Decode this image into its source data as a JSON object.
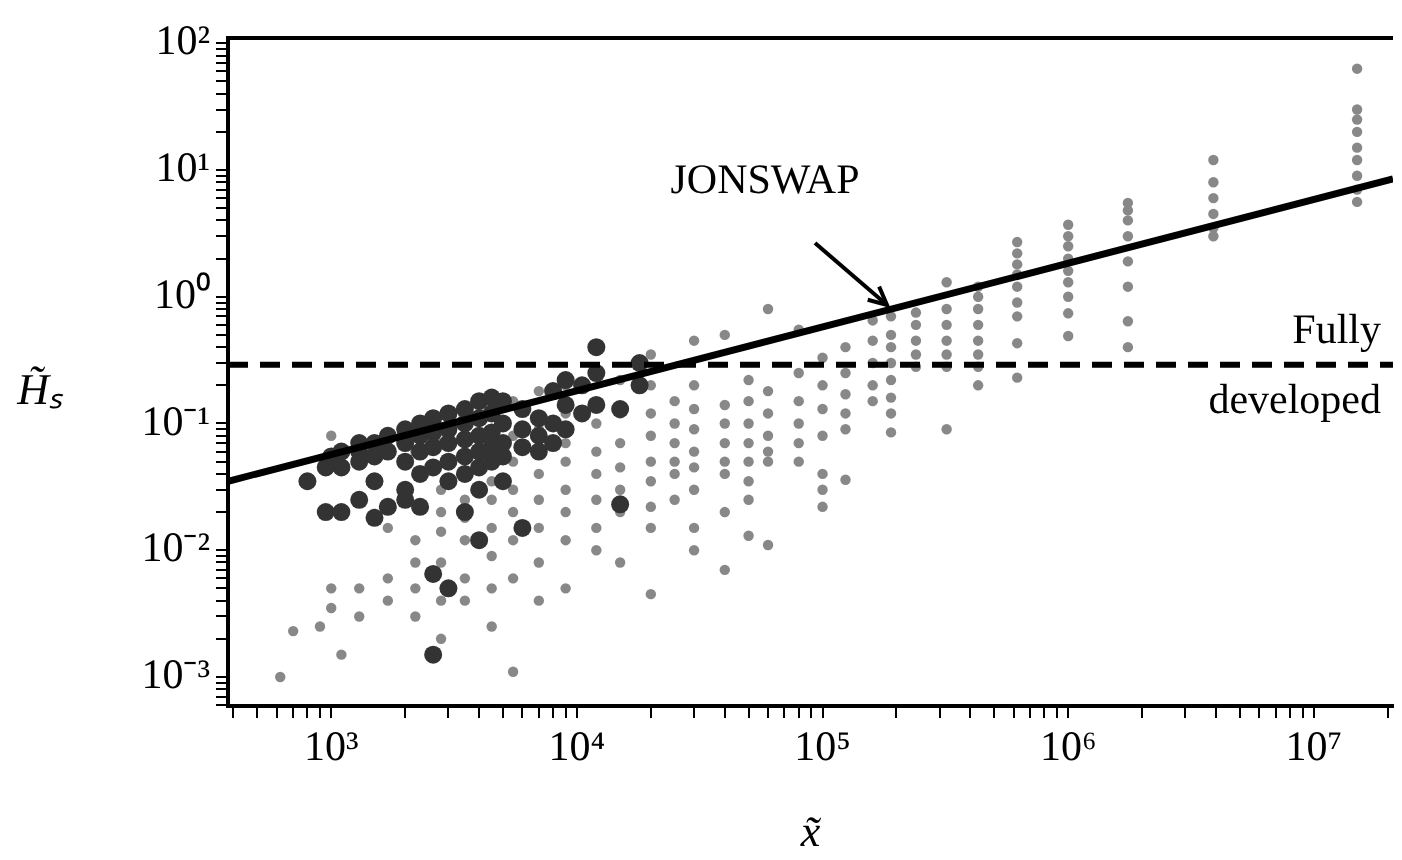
{
  "chart_data": {
    "type": "scatter",
    "xlabel": "x̃",
    "ylabel": "H̃ₛ",
    "log": "xy",
    "grid": false,
    "legend": false,
    "marker": "circle",
    "xlim": [
      380,
      21000000
    ],
    "ylim": [
      0.00059,
      110
    ],
    "xticks": [
      {
        "value": 400,
        "label": null
      },
      {
        "value": 500,
        "label": null
      },
      {
        "value": 600,
        "label": null
      },
      {
        "value": 700,
        "label": null
      },
      {
        "value": 800,
        "label": null
      },
      {
        "value": 900,
        "label": null
      },
      {
        "value": 1000,
        "label": "10³"
      },
      {
        "value": 2000,
        "label": null
      },
      {
        "value": 3000,
        "label": null
      },
      {
        "value": 4000,
        "label": null
      },
      {
        "value": 5000,
        "label": null
      },
      {
        "value": 6000,
        "label": null
      },
      {
        "value": 7000,
        "label": null
      },
      {
        "value": 8000,
        "label": null
      },
      {
        "value": 9000,
        "label": null
      },
      {
        "value": 10000,
        "label": "10⁴"
      },
      {
        "value": 20000,
        "label": null
      },
      {
        "value": 30000,
        "label": null
      },
      {
        "value": 40000,
        "label": null
      },
      {
        "value": 50000,
        "label": null
      },
      {
        "value": 60000,
        "label": null
      },
      {
        "value": 70000,
        "label": null
      },
      {
        "value": 80000,
        "label": null
      },
      {
        "value": 90000,
        "label": null
      },
      {
        "value": 100000,
        "label": "10⁵"
      },
      {
        "value": 200000,
        "label": null
      },
      {
        "value": 300000,
        "label": null
      },
      {
        "value": 400000,
        "label": null
      },
      {
        "value": 500000,
        "label": null
      },
      {
        "value": 600000,
        "label": null
      },
      {
        "value": 700000,
        "label": null
      },
      {
        "value": 800000,
        "label": null
      },
      {
        "value": 900000,
        "label": null
      },
      {
        "value": 1000000,
        "label": "10⁶"
      },
      {
        "value": 2000000,
        "label": null
      },
      {
        "value": 3000000,
        "label": null
      },
      {
        "value": 4000000,
        "label": null
      },
      {
        "value": 5000000,
        "label": null
      },
      {
        "value": 6000000,
        "label": null
      },
      {
        "value": 7000000,
        "label": null
      },
      {
        "value": 8000000,
        "label": null
      },
      {
        "value": 9000000,
        "label": null
      },
      {
        "value": 10000000,
        "label": "10⁷"
      },
      {
        "value": 20000000,
        "label": null
      }
    ],
    "yticks": [
      {
        "value": 0.0006,
        "label": null
      },
      {
        "value": 0.0007,
        "label": null
      },
      {
        "value": 0.0008,
        "label": null
      },
      {
        "value": 0.0009,
        "label": null
      },
      {
        "value": 0.001,
        "label": "10⁻³"
      },
      {
        "value": 0.002,
        "label": null
      },
      {
        "value": 0.003,
        "label": null
      },
      {
        "value": 0.004,
        "label": null
      },
      {
        "value": 0.005,
        "label": null
      },
      {
        "value": 0.006,
        "label": null
      },
      {
        "value": 0.007,
        "label": null
      },
      {
        "value": 0.008,
        "label": null
      },
      {
        "value": 0.009,
        "label": null
      },
      {
        "value": 0.01,
        "label": "10⁻²"
      },
      {
        "value": 0.02,
        "label": null
      },
      {
        "value": 0.03,
        "label": null
      },
      {
        "value": 0.04,
        "label": null
      },
      {
        "value": 0.05,
        "label": null
      },
      {
        "value": 0.06,
        "label": null
      },
      {
        "value": 0.07,
        "label": null
      },
      {
        "value": 0.08,
        "label": null
      },
      {
        "value": 0.09,
        "label": null
      },
      {
        "value": 0.1,
        "label": "10⁻¹"
      },
      {
        "value": 0.2,
        "label": null
      },
      {
        "value": 0.3,
        "label": null
      },
      {
        "value": 0.4,
        "label": null
      },
      {
        "value": 0.5,
        "label": null
      },
      {
        "value": 0.6,
        "label": null
      },
      {
        "value": 0.7,
        "label": null
      },
      {
        "value": 0.8,
        "label": null
      },
      {
        "value": 0.9,
        "label": null
      },
      {
        "value": 1,
        "label": "10⁰"
      },
      {
        "value": 2,
        "label": null
      },
      {
        "value": 3,
        "label": null
      },
      {
        "value": 4,
        "label": null
      },
      {
        "value": 5,
        "label": null
      },
      {
        "value": 6,
        "label": null
      },
      {
        "value": 7,
        "label": null
      },
      {
        "value": 8,
        "label": null
      },
      {
        "value": 9,
        "label": null
      },
      {
        "value": 10,
        "label": "10¹"
      },
      {
        "value": 20,
        "label": null
      },
      {
        "value": 30,
        "label": null
      },
      {
        "value": 40,
        "label": null
      },
      {
        "value": 50,
        "label": null
      },
      {
        "value": 60,
        "label": null
      },
      {
        "value": 70,
        "label": null
      },
      {
        "value": 80,
        "label": null
      },
      {
        "value": 90,
        "label": null
      },
      {
        "value": 100,
        "label": "10²"
      }
    ],
    "series": [
      {
        "color": "#888888",
        "x": [
          15000000,
          15000000,
          15000000,
          15000000,
          15000000,
          15000000,
          15000000,
          15000000,
          15000000,
          3900000,
          3900000,
          3900000,
          3900000,
          3900000,
          3900000,
          1750000,
          1750000,
          1750000,
          1750000,
          1750000,
          1750000,
          1750000,
          1750000,
          1000000,
          1000000,
          1000000,
          1000000,
          1000000,
          1000000,
          1000000,
          1000000,
          1000000,
          620000,
          620000,
          620000,
          620000,
          620000,
          620000,
          620000,
          620000,
          620000,
          430000,
          430000,
          430000,
          430000,
          430000,
          430000,
          430000,
          430000,
          320000,
          320000,
          320000,
          320000,
          320000,
          320000,
          320000,
          240000,
          240000,
          240000,
          240000,
          240000,
          190000,
          190000,
          190000,
          190000,
          190000,
          190000,
          190000,
          190000,
          160000,
          160000,
          160000,
          160000,
          160000,
          124000,
          124000,
          124000,
          124000,
          124000,
          124000,
          100000,
          100000,
          100000,
          100000,
          100000,
          100000,
          100000,
          80000,
          80000,
          80000,
          80000,
          80000,
          80000,
          60000,
          60000,
          60000,
          60000,
          60000,
          60000,
          60000,
          50000,
          50000,
          50000,
          50000,
          50000,
          50000,
          50000,
          50000,
          40000,
          40000,
          40000,
          40000,
          40000,
          40000,
          40000,
          40000,
          30000,
          30000,
          30000,
          30000,
          30000,
          30000,
          30000,
          30000,
          30000,
          25000,
          25000,
          25000,
          25000,
          25000,
          25000,
          20000,
          20000,
          20000,
          20000,
          20000,
          20000,
          20000,
          20000,
          20000,
          15000,
          15000,
          15000,
          15000,
          15000,
          15000,
          15000,
          12000,
          12000,
          12000,
          12000,
          12000,
          12000,
          9000,
          9000,
          9000,
          9000,
          9000,
          9000,
          9000,
          9000,
          7000,
          7000,
          7000,
          7000,
          7000,
          7000,
          7000,
          5500,
          5500,
          5500,
          5500,
          5500,
          5500,
          5500,
          5500,
          4500,
          4500,
          4500,
          4500,
          4500,
          4500,
          3500,
          3500,
          3500,
          3500,
          3500,
          2800,
          2800,
          2800,
          2800,
          2800,
          2800,
          2800,
          2200,
          2200,
          2200,
          2200,
          2200,
          1700,
          1700,
          1700,
          1300,
          1300,
          1000,
          1000,
          1000,
          900,
          1100,
          700,
          620
        ],
        "values": [
          63,
          30,
          25,
          20,
          15,
          12,
          9,
          7,
          5.6,
          12,
          8,
          6,
          4.5,
          3.5,
          3,
          5.5,
          4.8,
          4,
          3,
          1.9,
          1.2,
          0.64,
          0.4,
          3.7,
          3,
          2.5,
          2,
          1.6,
          1.3,
          1,
          0.74,
          0.49,
          2.7,
          2.2,
          1.8,
          1.5,
          1.2,
          0.9,
          0.7,
          0.43,
          0.23,
          1.2,
          1,
          0.8,
          0.6,
          0.45,
          0.35,
          0.28,
          0.2,
          1.3,
          0.8,
          0.6,
          0.45,
          0.35,
          0.28,
          0.09,
          0.75,
          0.6,
          0.45,
          0.35,
          0.28,
          0.7,
          0.5,
          0.4,
          0.3,
          0.22,
          0.16,
          0.12,
          0.085,
          0.65,
          0.45,
          0.3,
          0.2,
          0.15,
          0.4,
          0.25,
          0.17,
          0.12,
          0.09,
          0.036,
          0.33,
          0.2,
          0.13,
          0.08,
          0.04,
          0.03,
          0.022,
          0.55,
          0.25,
          0.15,
          0.1,
          0.07,
          0.05,
          0.8,
          0.18,
          0.12,
          0.08,
          0.06,
          0.05,
          0.011,
          0.22,
          0.15,
          0.1,
          0.07,
          0.05,
          0.035,
          0.025,
          0.013,
          0.5,
          0.14,
          0.1,
          0.07,
          0.05,
          0.04,
          0.02,
          0.007,
          0.45,
          0.2,
          0.13,
          0.09,
          0.06,
          0.045,
          0.03,
          0.015,
          0.01,
          0.15,
          0.1,
          0.07,
          0.05,
          0.04,
          0.025,
          0.35,
          0.2,
          0.12,
          0.08,
          0.05,
          0.035,
          0.022,
          0.015,
          0.0045,
          0.22,
          0.12,
          0.07,
          0.045,
          0.03,
          0.02,
          0.008,
          0.1,
          0.06,
          0.04,
          0.025,
          0.015,
          0.01,
          0.2,
          0.12,
          0.07,
          0.05,
          0.03,
          0.02,
          0.012,
          0.005,
          0.18,
          0.09,
          0.04,
          0.025,
          0.015,
          0.008,
          0.004,
          0.15,
          0.08,
          0.05,
          0.03,
          0.02,
          0.012,
          0.006,
          0.0011,
          0.035,
          0.025,
          0.015,
          0.009,
          0.005,
          0.0025,
          0.025,
          0.018,
          0.012,
          0.006,
          0.004,
          0.07,
          0.03,
          0.02,
          0.014,
          0.008,
          0.004,
          0.002,
          0.06,
          0.012,
          0.008,
          0.005,
          0.003,
          0.015,
          0.006,
          0.004,
          0.005,
          0.003,
          0.08,
          0.005,
          0.0035,
          0.0025,
          0.0015,
          0.0023,
          0.001
        ]
      },
      {
        "color": "#333333",
        "x": [
          800,
          950,
          950,
          1000,
          1100,
          1100,
          1100,
          1300,
          1300,
          1300,
          1300,
          1500,
          1500,
          1500,
          1500,
          1700,
          1700,
          1700,
          2000,
          2000,
          2000,
          2000,
          2000,
          2300,
          2300,
          2300,
          2300,
          2300,
          2600,
          2600,
          2600,
          2600,
          2600,
          2600,
          3000,
          3000,
          3000,
          3000,
          3000,
          3000,
          3500,
          3500,
          3500,
          3500,
          3500,
          3500,
          4000,
          4000,
          4000,
          4000,
          4000,
          4000,
          4000,
          4500,
          4500,
          4500,
          4500,
          4500,
          5000,
          5000,
          5000,
          5000,
          5000,
          6000,
          6000,
          6000,
          6000,
          7000,
          7000,
          7000,
          8000,
          8000,
          8000,
          9000,
          9000,
          9000,
          10500,
          10500,
          12000,
          12000,
          12000,
          15000,
          15000,
          18000,
          18000
        ],
        "values": [
          0.035,
          0.02,
          0.045,
          0.055,
          0.06,
          0.02,
          0.045,
          0.06,
          0.07,
          0.025,
          0.05,
          0.07,
          0.055,
          0.018,
          0.035,
          0.08,
          0.06,
          0.022,
          0.09,
          0.07,
          0.05,
          0.025,
          0.03,
          0.1,
          0.08,
          0.06,
          0.04,
          0.022,
          0.11,
          0.085,
          0.065,
          0.045,
          0.0065,
          0.0015,
          0.12,
          0.09,
          0.07,
          0.05,
          0.035,
          0.005,
          0.13,
          0.1,
          0.075,
          0.055,
          0.04,
          0.02,
          0.15,
          0.11,
          0.08,
          0.06,
          0.045,
          0.03,
          0.012,
          0.16,
          0.12,
          0.085,
          0.065,
          0.05,
          0.15,
          0.1,
          0.07,
          0.055,
          0.035,
          0.13,
          0.09,
          0.065,
          0.015,
          0.11,
          0.08,
          0.06,
          0.18,
          0.1,
          0.07,
          0.22,
          0.14,
          0.09,
          0.2,
          0.12,
          0.4,
          0.25,
          0.14,
          0.13,
          0.023,
          0.3,
          0.2
        ]
      },
      {
        "type": "line",
        "color": "#000000",
        "marker": "none",
        "x": [
          380,
          21000000
        ],
        "values": [
          0.035,
          8.5
        ]
      }
    ],
    "ref_lines": [
      {
        "axis": "y",
        "value": 0.29,
        "label": "Fully developed",
        "color": "#000000",
        "line_style": "dashed"
      }
    ],
    "annotations": [
      {
        "text": "JONSWAP",
        "x": 190000,
        "y": 0.8
      }
    ]
  }
}
